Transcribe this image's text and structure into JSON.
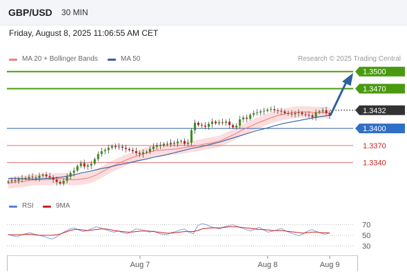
{
  "header": {
    "pair": "GBP/USD",
    "timeframe": "30 MIN"
  },
  "datetime": "Friday, August 8, 2025 11:06:55 AM CET",
  "legend": {
    "ma20": {
      "label": "MA 20 + Bollinger Bands",
      "color": "#f08080"
    },
    "ma50": {
      "label": "MA 50",
      "color": "#2f5fa8"
    }
  },
  "credit": "Research © 2025 Trading Central",
  "rsi_legend": {
    "rsi": {
      "label": "RSI",
      "color": "#5b7fd6"
    },
    "ma9": {
      "label": "9MA",
      "color": "#cc2222"
    }
  },
  "chart_data": [
    {
      "type": "candlestick",
      "title": "GBP/USD",
      "timeframe": "30 MIN",
      "x_labels": [
        "Aug 7",
        "Aug 8",
        "Aug 9"
      ],
      "ylim": [
        1.3285,
        1.3513
      ],
      "levels": [
        {
          "label": "1.3500",
          "value": 1.35,
          "color": "#4a9a10",
          "style": "resistance"
        },
        {
          "label": "1.3470",
          "value": 1.347,
          "color": "#4a9a10",
          "style": "resistance"
        },
        {
          "label": "1.3432",
          "value": 1.3432,
          "color": "#333333",
          "style": "last"
        },
        {
          "label": "1.3400",
          "value": 1.34,
          "color": "#2f5fa8",
          "style": "pivot"
        },
        {
          "label": "1.3370",
          "value": 1.337,
          "color": "#e07070",
          "style": "support"
        },
        {
          "label": "1.3340",
          "value": 1.334,
          "color": "#e07070",
          "style": "support"
        }
      ],
      "price_close": [
        1.3307,
        1.3309,
        1.3308,
        1.3311,
        1.3313,
        1.3312,
        1.3315,
        1.3314,
        1.3313,
        1.3317,
        1.3319,
        1.3316,
        1.3314,
        1.331,
        1.3306,
        1.3303,
        1.3308,
        1.3315,
        1.3322,
        1.3326,
        1.3334,
        1.3339,
        1.3333,
        1.3335,
        1.3338,
        1.3346,
        1.3355,
        1.336,
        1.3362,
        1.3366,
        1.3369,
        1.3367,
        1.3368,
        1.3366,
        1.3364,
        1.3362,
        1.336,
        1.3357,
        1.3355,
        1.3358,
        1.3359,
        1.3364,
        1.3368,
        1.3371,
        1.337,
        1.3373,
        1.3372,
        1.3375,
        1.3374,
        1.3377,
        1.3378,
        1.3373,
        1.3375,
        1.3397,
        1.341,
        1.3406,
        1.3405,
        1.3403,
        1.3408,
        1.3412,
        1.3409,
        1.3411,
        1.341,
        1.3412,
        1.3406,
        1.3402,
        1.3405,
        1.3416,
        1.3419,
        1.3417,
        1.3424,
        1.3427,
        1.3428,
        1.343,
        1.3431,
        1.3433,
        1.3434,
        1.3432,
        1.3431,
        1.343,
        1.3427,
        1.3426,
        1.3425,
        1.3427,
        1.3428,
        1.3425,
        1.3424,
        1.3423,
        1.342,
        1.3428,
        1.343,
        1.3432,
        1.3427,
        1.3422
      ],
      "ma20": [
        1.3304,
        1.3306,
        1.3307,
        1.3309,
        1.331,
        1.331,
        1.3311,
        1.3312,
        1.3311,
        1.331,
        1.3311,
        1.3313,
        1.3318,
        1.3325,
        1.3332,
        1.3338,
        1.3344,
        1.3349,
        1.3353,
        1.3357,
        1.3361,
        1.3362,
        1.3363,
        1.3364,
        1.3366,
        1.3368,
        1.337,
        1.3373,
        1.3375,
        1.3378,
        1.3384,
        1.339,
        1.3397,
        1.3403,
        1.3409,
        1.3414,
        1.3419,
        1.3423,
        1.3426,
        1.3428,
        1.3429,
        1.3429,
        1.3428,
        1.3428,
        1.3427
      ],
      "ma50": [
        1.3312,
        1.3312,
        1.3311,
        1.3311,
        1.3312,
        1.3313,
        1.3315,
        1.3318,
        1.3322,
        1.3325,
        1.3329,
        1.3332,
        1.3336,
        1.3339,
        1.3343,
        1.3346,
        1.335,
        1.3353,
        1.3357,
        1.3361,
        1.3365,
        1.3368,
        1.3372,
        1.3376,
        1.3381,
        1.3386,
        1.3391,
        1.3396,
        1.34,
        1.3405,
        1.3409,
        1.3412,
        1.3415,
        1.3418,
        1.3421,
        1.3423
      ],
      "rsi": {
        "levels": [
          70,
          50,
          30
        ],
        "ylim": [
          20,
          80
        ],
        "rsi": [
          52,
          49,
          47,
          51,
          53,
          55,
          52,
          50,
          48,
          45,
          43,
          47,
          53,
          58,
          62,
          64,
          60,
          57,
          59,
          63,
          66,
          64,
          61,
          58,
          56,
          58,
          55,
          53,
          57,
          62,
          61,
          59,
          56,
          58,
          54,
          52,
          51,
          55,
          57,
          60,
          62,
          56,
          53,
          68,
          72,
          70,
          66,
          64,
          62,
          66,
          68,
          70,
          67,
          63,
          61,
          58,
          62,
          65,
          60,
          56,
          58,
          60,
          63,
          58,
          55,
          52,
          49,
          53,
          58,
          61,
          57,
          54,
          52,
          55
        ],
        "ma9": [
          51,
          51,
          51,
          51,
          52,
          52,
          51,
          50,
          50,
          50,
          50,
          51,
          53,
          56,
          59,
          61,
          61,
          60,
          59,
          60,
          61,
          62,
          62,
          61,
          59,
          58,
          57,
          56,
          56,
          57,
          58,
          58,
          58,
          57,
          56,
          55,
          54,
          54,
          55,
          56,
          57,
          57,
          57,
          59,
          62,
          63,
          64,
          64,
          64,
          65,
          66,
          66,
          66,
          65,
          64,
          63,
          62,
          61,
          61,
          60,
          59,
          59,
          59,
          58,
          57,
          56,
          55,
          54,
          55,
          56,
          56,
          55,
          55,
          54
        ]
      }
    }
  ]
}
